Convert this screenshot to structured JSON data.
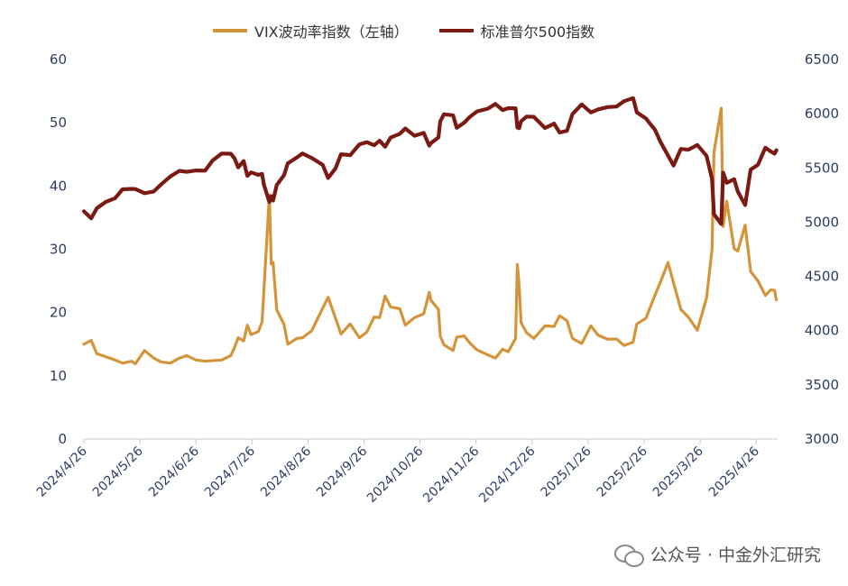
{
  "chart_data": {
    "type": "line",
    "x_tick_labels": [
      "2024/4/26",
      "2024/5/26",
      "2024/6/26",
      "2024/7/26",
      "2024/8/26",
      "2024/9/26",
      "2024/10/26",
      "2024/11/26",
      "2024/12/26",
      "2025/1/26",
      "2025/2/26",
      "2025/3/26",
      "2025/4/26"
    ],
    "x_range": [
      "2024/4/26",
      "2025/5/8"
    ],
    "y_left": {
      "range": [
        0,
        60
      ],
      "ticks": [
        0,
        10,
        20,
        30,
        40,
        50,
        60
      ]
    },
    "y_right": {
      "range": [
        3000,
        6500
      ],
      "ticks": [
        3000,
        3500,
        4000,
        4500,
        5000,
        5500,
        6000,
        6500
      ]
    },
    "grid": false,
    "legend_placement": "top-center",
    "series": [
      {
        "name": "VIX波动率指数（左轴）",
        "axis": "left",
        "color": "#D4943A",
        "points": [
          [
            "2024-04-26",
            15.0
          ],
          [
            "2024-04-30",
            15.6
          ],
          [
            "2024-05-03",
            13.5
          ],
          [
            "2024-05-08",
            13.0
          ],
          [
            "2024-05-13",
            12.5
          ],
          [
            "2024-05-17",
            12.0
          ],
          [
            "2024-05-22",
            12.3
          ],
          [
            "2024-05-24",
            11.9
          ],
          [
            "2024-05-29",
            14.0
          ],
          [
            "2024-06-03",
            12.8
          ],
          [
            "2024-06-07",
            12.2
          ],
          [
            "2024-06-12",
            12.0
          ],
          [
            "2024-06-17",
            12.8
          ],
          [
            "2024-06-21",
            13.2
          ],
          [
            "2024-06-26",
            12.5
          ],
          [
            "2024-07-01",
            12.3
          ],
          [
            "2024-07-05",
            12.4
          ],
          [
            "2024-07-10",
            12.5
          ],
          [
            "2024-07-15",
            13.2
          ],
          [
            "2024-07-17",
            14.5
          ],
          [
            "2024-07-19",
            16.0
          ],
          [
            "2024-07-22",
            15.5
          ],
          [
            "2024-07-24",
            18.0
          ],
          [
            "2024-07-26",
            16.5
          ],
          [
            "2024-07-30",
            17.0
          ],
          [
            "2024-08-01",
            18.5
          ],
          [
            "2024-08-02",
            23.4
          ],
          [
            "2024-08-05",
            38.6
          ],
          [
            "2024-08-06",
            27.7
          ],
          [
            "2024-08-07",
            27.9
          ],
          [
            "2024-08-09",
            20.4
          ],
          [
            "2024-08-13",
            18.1
          ],
          [
            "2024-08-15",
            15.0
          ],
          [
            "2024-08-20",
            15.9
          ],
          [
            "2024-08-23",
            16.0
          ],
          [
            "2024-08-28",
            17.1
          ],
          [
            "2024-09-03",
            20.7
          ],
          [
            "2024-09-06",
            22.4
          ],
          [
            "2024-09-10",
            19.1
          ],
          [
            "2024-09-13",
            16.6
          ],
          [
            "2024-09-18",
            18.2
          ],
          [
            "2024-09-23",
            16.0
          ],
          [
            "2024-09-27",
            16.9
          ],
          [
            "2024-10-01",
            19.3
          ],
          [
            "2024-10-04",
            19.2
          ],
          [
            "2024-10-07",
            22.6
          ],
          [
            "2024-10-10",
            20.9
          ],
          [
            "2024-10-15",
            20.6
          ],
          [
            "2024-10-18",
            18.0
          ],
          [
            "2024-10-23",
            19.2
          ],
          [
            "2024-10-28",
            19.8
          ],
          [
            "2024-10-31",
            23.2
          ],
          [
            "2024-11-01",
            21.9
          ],
          [
            "2024-11-05",
            20.5
          ],
          [
            "2024-11-06",
            16.3
          ],
          [
            "2024-11-08",
            14.9
          ],
          [
            "2024-11-13",
            14.0
          ],
          [
            "2024-11-15",
            16.1
          ],
          [
            "2024-11-19",
            16.3
          ],
          [
            "2024-11-22",
            15.2
          ],
          [
            "2024-11-26",
            14.1
          ],
          [
            "2024-12-02",
            13.3
          ],
          [
            "2024-12-06",
            12.8
          ],
          [
            "2024-12-10",
            14.2
          ],
          [
            "2024-12-13",
            13.8
          ],
          [
            "2024-12-17",
            15.9
          ],
          [
            "2024-12-18",
            27.6
          ],
          [
            "2024-12-19",
            24.1
          ],
          [
            "2024-12-20",
            18.4
          ],
          [
            "2024-12-23",
            16.8
          ],
          [
            "2024-12-27",
            15.9
          ],
          [
            "2025-01-02",
            17.9
          ],
          [
            "2025-01-07",
            17.8
          ],
          [
            "2025-01-10",
            19.5
          ],
          [
            "2025-01-14",
            18.7
          ],
          [
            "2025-01-17",
            15.9
          ],
          [
            "2025-01-22",
            15.1
          ],
          [
            "2025-01-27",
            17.9
          ],
          [
            "2025-01-31",
            16.4
          ],
          [
            "2025-02-05",
            15.8
          ],
          [
            "2025-02-10",
            15.8
          ],
          [
            "2025-02-14",
            14.8
          ],
          [
            "2025-02-19",
            15.3
          ],
          [
            "2025-02-21",
            18.2
          ],
          [
            "2025-02-26",
            19.1
          ],
          [
            "2025-03-03",
            22.8
          ],
          [
            "2025-03-06",
            24.9
          ],
          [
            "2025-03-10",
            27.9
          ],
          [
            "2025-03-13",
            24.7
          ],
          [
            "2025-03-17",
            20.5
          ],
          [
            "2025-03-21",
            19.3
          ],
          [
            "2025-03-26",
            17.2
          ],
          [
            "2025-03-31",
            22.3
          ],
          [
            "2025-04-03",
            30.0
          ],
          [
            "2025-04-04",
            45.3
          ],
          [
            "2025-04-08",
            52.3
          ],
          [
            "2025-04-09",
            33.6
          ],
          [
            "2025-04-11",
            37.6
          ],
          [
            "2025-04-15",
            30.1
          ],
          [
            "2025-04-17",
            29.7
          ],
          [
            "2025-04-21",
            33.8
          ],
          [
            "2025-04-24",
            26.5
          ],
          [
            "2025-04-28",
            25.0
          ],
          [
            "2025-05-02",
            22.7
          ],
          [
            "2025-05-05",
            23.6
          ],
          [
            "2025-05-07",
            23.5
          ],
          [
            "2025-05-08",
            22.0
          ]
        ]
      },
      {
        "name": "标准普尔500指数",
        "axis": "right",
        "color": "#7A1A12",
        "points": [
          [
            "2024-04-26",
            5100
          ],
          [
            "2024-04-30",
            5035
          ],
          [
            "2024-05-03",
            5128
          ],
          [
            "2024-05-08",
            5187
          ],
          [
            "2024-05-13",
            5221
          ],
          [
            "2024-05-17",
            5303
          ],
          [
            "2024-05-22",
            5307
          ],
          [
            "2024-05-24",
            5305
          ],
          [
            "2024-05-29",
            5267
          ],
          [
            "2024-06-03",
            5283
          ],
          [
            "2024-06-07",
            5347
          ],
          [
            "2024-06-12",
            5421
          ],
          [
            "2024-06-17",
            5473
          ],
          [
            "2024-06-21",
            5464
          ],
          [
            "2024-06-26",
            5477
          ],
          [
            "2024-07-01",
            5475
          ],
          [
            "2024-07-05",
            5567
          ],
          [
            "2024-07-10",
            5633
          ],
          [
            "2024-07-15",
            5631
          ],
          [
            "2024-07-17",
            5588
          ],
          [
            "2024-07-19",
            5505
          ],
          [
            "2024-07-22",
            5564
          ],
          [
            "2024-07-24",
            5427
          ],
          [
            "2024-07-26",
            5459
          ],
          [
            "2024-07-30",
            5436
          ],
          [
            "2024-08-01",
            5446
          ],
          [
            "2024-08-02",
            5346
          ],
          [
            "2024-08-05",
            5186
          ],
          [
            "2024-08-06",
            5240
          ],
          [
            "2024-08-07",
            5199
          ],
          [
            "2024-08-09",
            5344
          ],
          [
            "2024-08-13",
            5434
          ],
          [
            "2024-08-15",
            5543
          ],
          [
            "2024-08-20",
            5597
          ],
          [
            "2024-08-23",
            5634
          ],
          [
            "2024-08-28",
            5592
          ],
          [
            "2024-09-03",
            5528
          ],
          [
            "2024-09-06",
            5408
          ],
          [
            "2024-09-10",
            5496
          ],
          [
            "2024-09-13",
            5626
          ],
          [
            "2024-09-18",
            5618
          ],
          [
            "2024-09-23",
            5718
          ],
          [
            "2024-09-27",
            5738
          ],
          [
            "2024-10-01",
            5709
          ],
          [
            "2024-10-04",
            5751
          ],
          [
            "2024-10-07",
            5695
          ],
          [
            "2024-10-10",
            5780
          ],
          [
            "2024-10-15",
            5815
          ],
          [
            "2024-10-18",
            5864
          ],
          [
            "2024-10-23",
            5797
          ],
          [
            "2024-10-28",
            5823
          ],
          [
            "2024-10-31",
            5705
          ],
          [
            "2024-11-01",
            5729
          ],
          [
            "2024-11-05",
            5782
          ],
          [
            "2024-11-06",
            5929
          ],
          [
            "2024-11-08",
            5995
          ],
          [
            "2024-11-13",
            5985
          ],
          [
            "2024-11-15",
            5870
          ],
          [
            "2024-11-19",
            5917
          ],
          [
            "2024-11-22",
            5969
          ],
          [
            "2024-11-26",
            6021
          ],
          [
            "2024-12-02",
            6047
          ],
          [
            "2024-12-06",
            6090
          ],
          [
            "2024-12-10",
            6034
          ],
          [
            "2024-12-13",
            6051
          ],
          [
            "2024-12-17",
            6050
          ],
          [
            "2024-12-18",
            5872
          ],
          [
            "2024-12-19",
            5867
          ],
          [
            "2024-12-20",
            5930
          ],
          [
            "2024-12-23",
            5974
          ],
          [
            "2024-12-27",
            5971
          ],
          [
            "2025-01-02",
            5868
          ],
          [
            "2025-01-07",
            5909
          ],
          [
            "2025-01-10",
            5827
          ],
          [
            "2025-01-14",
            5842
          ],
          [
            "2025-01-17",
            5997
          ],
          [
            "2025-01-22",
            6086
          ],
          [
            "2025-01-27",
            6012
          ],
          [
            "2025-01-31",
            6040
          ],
          [
            "2025-02-05",
            6061
          ],
          [
            "2025-02-10",
            6066
          ],
          [
            "2025-02-14",
            6115
          ],
          [
            "2025-02-19",
            6144
          ],
          [
            "2025-02-21",
            6013
          ],
          [
            "2025-02-26",
            5956
          ],
          [
            "2025-03-03",
            5850
          ],
          [
            "2025-03-06",
            5738
          ],
          [
            "2025-03-10",
            5615
          ],
          [
            "2025-03-13",
            5522
          ],
          [
            "2025-03-17",
            5675
          ],
          [
            "2025-03-21",
            5668
          ],
          [
            "2025-03-26",
            5712
          ],
          [
            "2025-03-31",
            5612
          ],
          [
            "2025-04-03",
            5397
          ],
          [
            "2025-04-04",
            5074
          ],
          [
            "2025-04-08",
            4983
          ],
          [
            "2025-04-09",
            5457
          ],
          [
            "2025-04-11",
            5363
          ],
          [
            "2025-04-15",
            5397
          ],
          [
            "2025-04-17",
            5283
          ],
          [
            "2025-04-21",
            5158
          ],
          [
            "2025-04-24",
            5485
          ],
          [
            "2025-04-28",
            5529
          ],
          [
            "2025-05-02",
            5687
          ],
          [
            "2025-05-05",
            5651
          ],
          [
            "2025-05-07",
            5631
          ],
          [
            "2025-05-08",
            5664
          ]
        ]
      }
    ]
  },
  "watermark": {
    "text": "公众号 · 中金外汇研究",
    "icon": "wechat-icon"
  }
}
